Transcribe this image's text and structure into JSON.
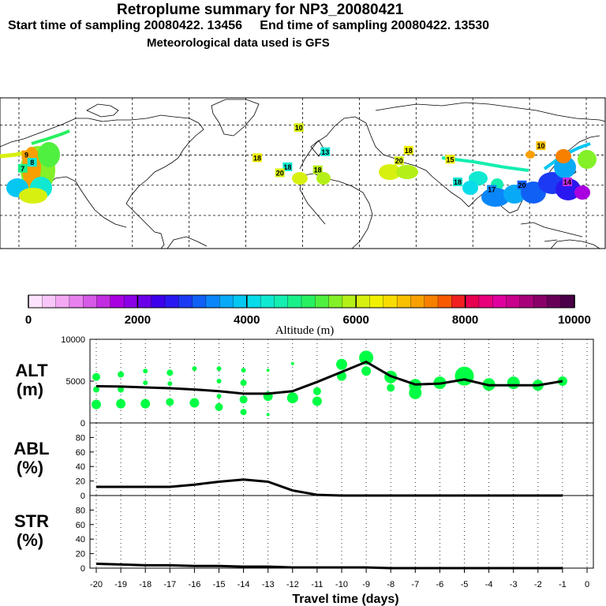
{
  "header": {
    "title": "Retroplume summary for NP3_20080421",
    "sampling": "Start time of sampling 20080422. 13456     End time of sampling 20080422. 13530",
    "meteo": "Meteorological data used is GFS"
  },
  "colorbar": {
    "ticks": [
      "0",
      "2000",
      "4000",
      "6000",
      "8000",
      "10000"
    ],
    "title": "Altitude (m)",
    "colors": [
      "#fde3fd",
      "#f9c6f9",
      "#f2a8f2",
      "#e880ee",
      "#d55ae6",
      "#c22de0",
      "#a800e0",
      "#8a00e6",
      "#6a00ea",
      "#3d00ea",
      "#2a18f0",
      "#1c3af4",
      "#1060f6",
      "#0a86f8",
      "#08aaf8",
      "#06c6f2",
      "#08dcea",
      "#10e8d2",
      "#14eeb0",
      "#1af08a",
      "#28f060",
      "#50f040",
      "#84f028",
      "#b4f018",
      "#d8f010",
      "#f0f000",
      "#f8dc00",
      "#f8c000",
      "#f8a000",
      "#f88000",
      "#f85a00",
      "#f02020",
      "#e80050",
      "#e8007a",
      "#e000a0",
      "#c8008c",
      "#a8007a",
      "#880068",
      "#680058",
      "#4a0048"
    ],
    "legend_color": "#00ff44"
  },
  "chart_data": [
    {
      "type": "scatter",
      "name": "ALT",
      "ylabel": "ALT (m)",
      "ylim": [
        0,
        10000
      ],
      "yticks": [
        "10000",
        "5000",
        "0"
      ],
      "x": [
        -20,
        -19,
        -18,
        -17,
        -16,
        -15,
        -14,
        -13,
        -12,
        -11,
        -10,
        -9,
        -8,
        -7,
        -6,
        -5,
        -4,
        -3,
        -2,
        -1
      ],
      "median": [
        4400,
        4350,
        4250,
        4150,
        4000,
        3800,
        3500,
        3500,
        3800,
        4900,
        6100,
        7300,
        5600,
        4600,
        4700,
        5200,
        4500,
        4500,
        4500,
        5000
      ],
      "blobs": [
        {
          "x": -20,
          "y": 5500,
          "r": 5
        },
        {
          "x": -20,
          "y": 4000,
          "r": 4
        },
        {
          "x": -20,
          "y": 2200,
          "r": 6
        },
        {
          "x": -19,
          "y": 5800,
          "r": 4
        },
        {
          "x": -19,
          "y": 4000,
          "r": 4
        },
        {
          "x": -19,
          "y": 2300,
          "r": 6
        },
        {
          "x": -18,
          "y": 6200,
          "r": 3
        },
        {
          "x": -18,
          "y": 4800,
          "r": 3
        },
        {
          "x": -18,
          "y": 2300,
          "r": 6
        },
        {
          "x": -17,
          "y": 6000,
          "r": 4
        },
        {
          "x": -17,
          "y": 4700,
          "r": 3
        },
        {
          "x": -17,
          "y": 2500,
          "r": 5
        },
        {
          "x": -16,
          "y": 6500,
          "r": 3
        },
        {
          "x": -16,
          "y": 2400,
          "r": 6
        },
        {
          "x": -15,
          "y": 6500,
          "r": 3
        },
        {
          "x": -15,
          "y": 5000,
          "r": 3
        },
        {
          "x": -15,
          "y": 3200,
          "r": 3
        },
        {
          "x": -15,
          "y": 1900,
          "r": 5
        },
        {
          "x": -14,
          "y": 6300,
          "r": 3
        },
        {
          "x": -14,
          "y": 4800,
          "r": 4
        },
        {
          "x": -14,
          "y": 2800,
          "r": 5
        },
        {
          "x": -14,
          "y": 1300,
          "r": 4
        },
        {
          "x": -13,
          "y": 6300,
          "r": 2
        },
        {
          "x": -13,
          "y": 3200,
          "r": 6
        },
        {
          "x": -13,
          "y": 1000,
          "r": 2
        },
        {
          "x": -12,
          "y": 7100,
          "r": 2
        },
        {
          "x": -12,
          "y": 3000,
          "r": 7
        },
        {
          "x": -11,
          "y": 3800,
          "r": 5
        },
        {
          "x": -11,
          "y": 2600,
          "r": 6
        },
        {
          "x": -10,
          "y": 7000,
          "r": 7
        },
        {
          "x": -10,
          "y": 5600,
          "r": 6
        },
        {
          "x": -9,
          "y": 7800,
          "r": 9
        },
        {
          "x": -9,
          "y": 6200,
          "r": 6
        },
        {
          "x": -8,
          "y": 5500,
          "r": 8
        },
        {
          "x": -8,
          "y": 4200,
          "r": 5
        },
        {
          "x": -7,
          "y": 4500,
          "r": 8
        },
        {
          "x": -7,
          "y": 3600,
          "r": 8
        },
        {
          "x": -6,
          "y": 4800,
          "r": 8
        },
        {
          "x": -5,
          "y": 5600,
          "r": 12
        },
        {
          "x": -4,
          "y": 4600,
          "r": 8
        },
        {
          "x": -3,
          "y": 4800,
          "r": 8
        },
        {
          "x": -2,
          "y": 4500,
          "r": 7
        },
        {
          "x": -1,
          "y": 5000,
          "r": 6
        }
      ]
    },
    {
      "type": "line",
      "name": "ABL",
      "ylabel": "ABL (%)",
      "ylim": [
        0,
        100
      ],
      "yticks": [
        "80",
        "60",
        "40",
        "20",
        "0"
      ],
      "x": [
        -20,
        -19,
        -18,
        -17,
        -16,
        -15,
        -14,
        -13,
        -12,
        -11,
        -10,
        -9,
        -8,
        -7,
        -6,
        -5,
        -4,
        -3,
        -2,
        -1
      ],
      "values": [
        12,
        12,
        12,
        12,
        15,
        19,
        22,
        19,
        7,
        1,
        0,
        0,
        0,
        0,
        0,
        0,
        0,
        0,
        0,
        0
      ]
    },
    {
      "type": "line",
      "name": "STR",
      "ylabel": "STR (%)",
      "ylim": [
        0,
        100
      ],
      "yticks": [
        "80",
        "60",
        "40",
        "20",
        "0"
      ],
      "x": [
        -20,
        -19,
        -18,
        -17,
        -16,
        -15,
        -14,
        -13,
        -12,
        -11,
        -10,
        -9,
        -8,
        -7,
        -6,
        -5,
        -4,
        -3,
        -2,
        -1
      ],
      "values": [
        6,
        5,
        4,
        4,
        3,
        3,
        2,
        2,
        1,
        1,
        1,
        1,
        0,
        0,
        0,
        0,
        0,
        0,
        0,
        0
      ]
    }
  ],
  "xaxis": {
    "ticks": [
      "-20",
      "-19",
      "-18",
      "-17",
      "-16",
      "-15",
      "-14",
      "-13",
      "-12",
      "-11",
      "-10",
      "-9",
      "-8",
      "-7",
      "-6",
      "-5",
      "-4",
      "-3",
      "-2",
      "-1",
      "0"
    ],
    "title": "Travel time (days)"
  },
  "panel_labels": {
    "alt": [
      "ALT",
      "(m)"
    ],
    "abl": [
      "ABL",
      "(%)"
    ],
    "str": [
      "STR",
      "(%)"
    ]
  },
  "map": {
    "labels": [
      {
        "t": "9",
        "c": "#f8a000",
        "lon": -146,
        "lat": 40
      },
      {
        "t": "7",
        "c": "#1af08a",
        "lon": -148,
        "lat": 31
      },
      {
        "t": "8",
        "c": "#10e8d2",
        "lon": -143,
        "lat": 35
      },
      {
        "t": "10",
        "c": "#d8f010",
        "lon": -2,
        "lat": 58
      },
      {
        "t": "18",
        "c": "#f0f000",
        "lon": -24,
        "lat": 38
      },
      {
        "t": "18",
        "c": "#10e8d2",
        "lon": -8,
        "lat": 32
      },
      {
        "t": "20",
        "c": "#d8f010",
        "lon": -12,
        "lat": 28
      },
      {
        "t": "18",
        "c": "#b4f018",
        "lon": 8,
        "lat": 30
      },
      {
        "t": "13",
        "c": "#10e8d2",
        "lon": 12,
        "lat": 42
      },
      {
        "t": "18",
        "c": "#f0f000",
        "lon": 56,
        "lat": 43
      },
      {
        "t": "20",
        "c": "#d8f010",
        "lon": 51,
        "lat": 36
      },
      {
        "t": "15",
        "c": "#f0f000",
        "lon": 78,
        "lat": 37
      },
      {
        "t": "18",
        "c": "#10e8d2",
        "lon": 82,
        "lat": 22
      },
      {
        "t": "17",
        "c": "#0a86f8",
        "lon": 100,
        "lat": 17
      },
      {
        "t": "10",
        "c": "#f8c000",
        "lon": 126,
        "lat": 46
      },
      {
        "t": "20",
        "c": "#1060f6",
        "lon": 116,
        "lat": 20
      },
      {
        "t": "14",
        "c": "#c22de0",
        "lon": 140,
        "lat": 22
      }
    ]
  }
}
